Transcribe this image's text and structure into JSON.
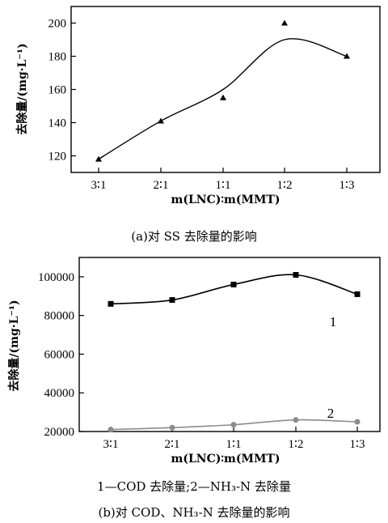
{
  "chart_data": [
    {
      "type": "scatter",
      "categories": [
        "3∶1",
        "2∶1",
        "1∶1",
        "1∶2",
        "1∶3"
      ],
      "ylabel": "去除量/(mg·L⁻¹)",
      "xlabel": "m(LNC)∶m(MMT)",
      "ylim": [
        110,
        210
      ],
      "yticks": [
        120,
        140,
        160,
        180,
        200
      ],
      "ytick_labels": [
        "120",
        "140",
        "160",
        "180",
        "200"
      ],
      "series": [
        {
          "marker": "triangle",
          "color": "#000000",
          "values": [
            118,
            141,
            155,
            200,
            180
          ]
        }
      ],
      "trend": {
        "smooth": true,
        "color": "#000000"
      },
      "caption": "(a)对 SS 去除量的影响"
    },
    {
      "type": "line",
      "categories": [
        "3∶1",
        "2∶1",
        "1∶1",
        "1∶2",
        "1∶3"
      ],
      "ylabel": "去除量/(mg·L⁻¹)",
      "xlabel": "m(LNC)∶m(MMT)",
      "ylim": [
        20000,
        110000
      ],
      "yticks": [
        20000,
        40000,
        60000,
        80000,
        100000
      ],
      "ytick_labels": [
        "20000",
        "40000",
        "60000",
        "80000",
        "100000"
      ],
      "series": [
        {
          "name": "1",
          "marker": "square",
          "color": "#000000",
          "values": [
            86000,
            88000,
            96000,
            101000,
            91000
          ]
        },
        {
          "name": "2",
          "marker": "circle",
          "color": "#8c8c8c",
          "values": [
            21000,
            22000,
            23500,
            26000,
            25000
          ]
        }
      ],
      "legend_text": "1—COD 去除量;2—NH₃-N 去除量",
      "caption": "(b)对 COD、NH₃-N 去除量的影响"
    }
  ]
}
